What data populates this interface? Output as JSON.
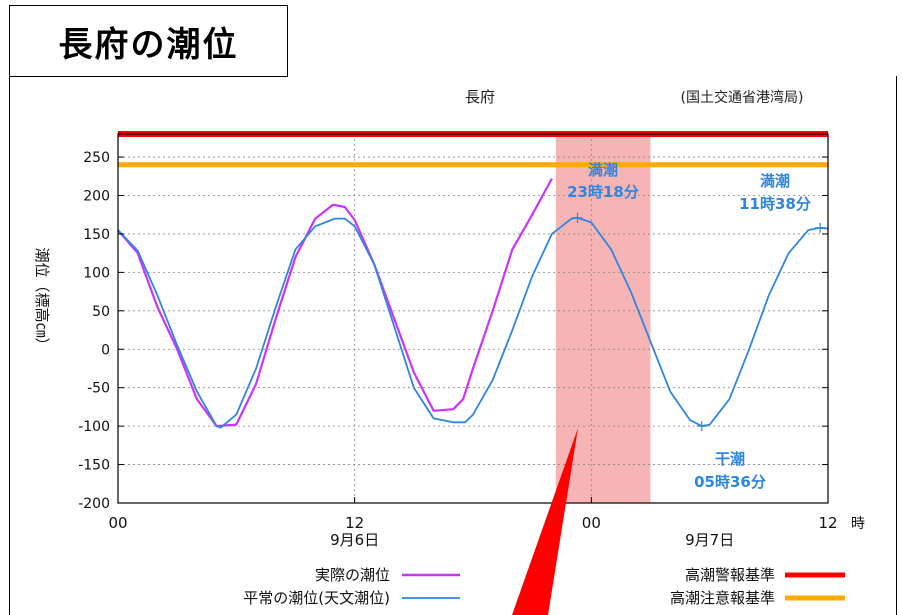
{
  "page": {
    "title": "長府の潮位"
  },
  "chart_data": {
    "type": "line",
    "title": "長府",
    "source": "(国土交通省港湾局)",
    "ylabel": "潮位（標高㎝）",
    "ylim": [
      -200,
      280
    ],
    "yticks": [
      250,
      200,
      150,
      100,
      50,
      0,
      -50,
      -100,
      -150,
      -200
    ],
    "xlim_hours": [
      0,
      36
    ],
    "xticks": [
      {
        "h": 0,
        "label": "00"
      },
      {
        "h": 12,
        "label": "12"
      },
      {
        "h": 24,
        "label": "00"
      },
      {
        "h": 36,
        "label": "12"
      }
    ],
    "x_unit": "時",
    "date_labels": [
      {
        "h": 12,
        "label": "9月6日"
      },
      {
        "h": 30,
        "label": "9月7日"
      }
    ],
    "grid": true,
    "thresholds": [
      {
        "name": "高潮警報基準",
        "value": 280,
        "color": "#ff0000"
      },
      {
        "name": "高潮注意報基準",
        "value": 240,
        "color": "#ffaa00"
      }
    ],
    "highlight_band_hours": [
      22.2,
      27
    ],
    "series": [
      {
        "name": "実際の潮位",
        "color": "#cc33ff",
        "x": [
          0,
          1,
          2,
          3,
          4,
          5,
          6,
          7,
          8,
          9,
          10,
          10.9,
          11.5,
          12,
          13,
          14,
          15,
          16,
          17,
          17.5,
          18,
          19,
          20,
          21,
          22
        ],
        "y": [
          155,
          125,
          55,
          0,
          -65,
          -100,
          -98,
          -45,
          40,
          120,
          170,
          188,
          185,
          168,
          110,
          40,
          -30,
          -80,
          -78,
          -65,
          -25,
          50,
          130,
          175,
          222
        ]
      },
      {
        "name": "平常の潮位(天文潮位)",
        "color": "#2f86e0",
        "x": [
          0,
          1,
          2,
          3,
          4,
          5,
          5.2,
          6,
          7,
          8,
          9,
          10,
          11,
          11.5,
          12,
          13,
          14,
          15,
          16,
          17,
          17.6,
          18,
          19,
          20,
          21,
          22,
          23,
          23.3,
          24,
          25,
          26,
          27,
          28,
          29,
          29.6,
          30,
          31,
          32,
          33,
          34,
          35,
          35.6,
          36
        ],
        "y": [
          155,
          128,
          70,
          5,
          -55,
          -100,
          -102,
          -85,
          -25,
          55,
          130,
          160,
          170,
          170,
          160,
          110,
          30,
          -50,
          -90,
          -95,
          -95,
          -85,
          -40,
          25,
          95,
          150,
          170,
          171,
          165,
          130,
          75,
          10,
          -55,
          -92,
          -100,
          -98,
          -65,
          0,
          70,
          125,
          155,
          158,
          157
        ]
      }
    ],
    "annotations": [
      {
        "text": "満潮",
        "sub": "23時18分",
        "h": 23.3,
        "value": 171
      },
      {
        "text": "満潮",
        "sub": "11時38分",
        "h": 35.6,
        "value": 158
      },
      {
        "text": "干潮",
        "sub": "05時36分",
        "h": 29.6,
        "value": -100
      }
    ],
    "legend": [
      {
        "label": "実際の潮位",
        "color": "#cc33ff"
      },
      {
        "label": "平常の潮位(天文潮位)",
        "color": "#2f86e0"
      },
      {
        "label": "高潮警報基準",
        "color": "#ff0000"
      },
      {
        "label": "高潮注意報基準",
        "color": "#ffaa00"
      }
    ]
  }
}
